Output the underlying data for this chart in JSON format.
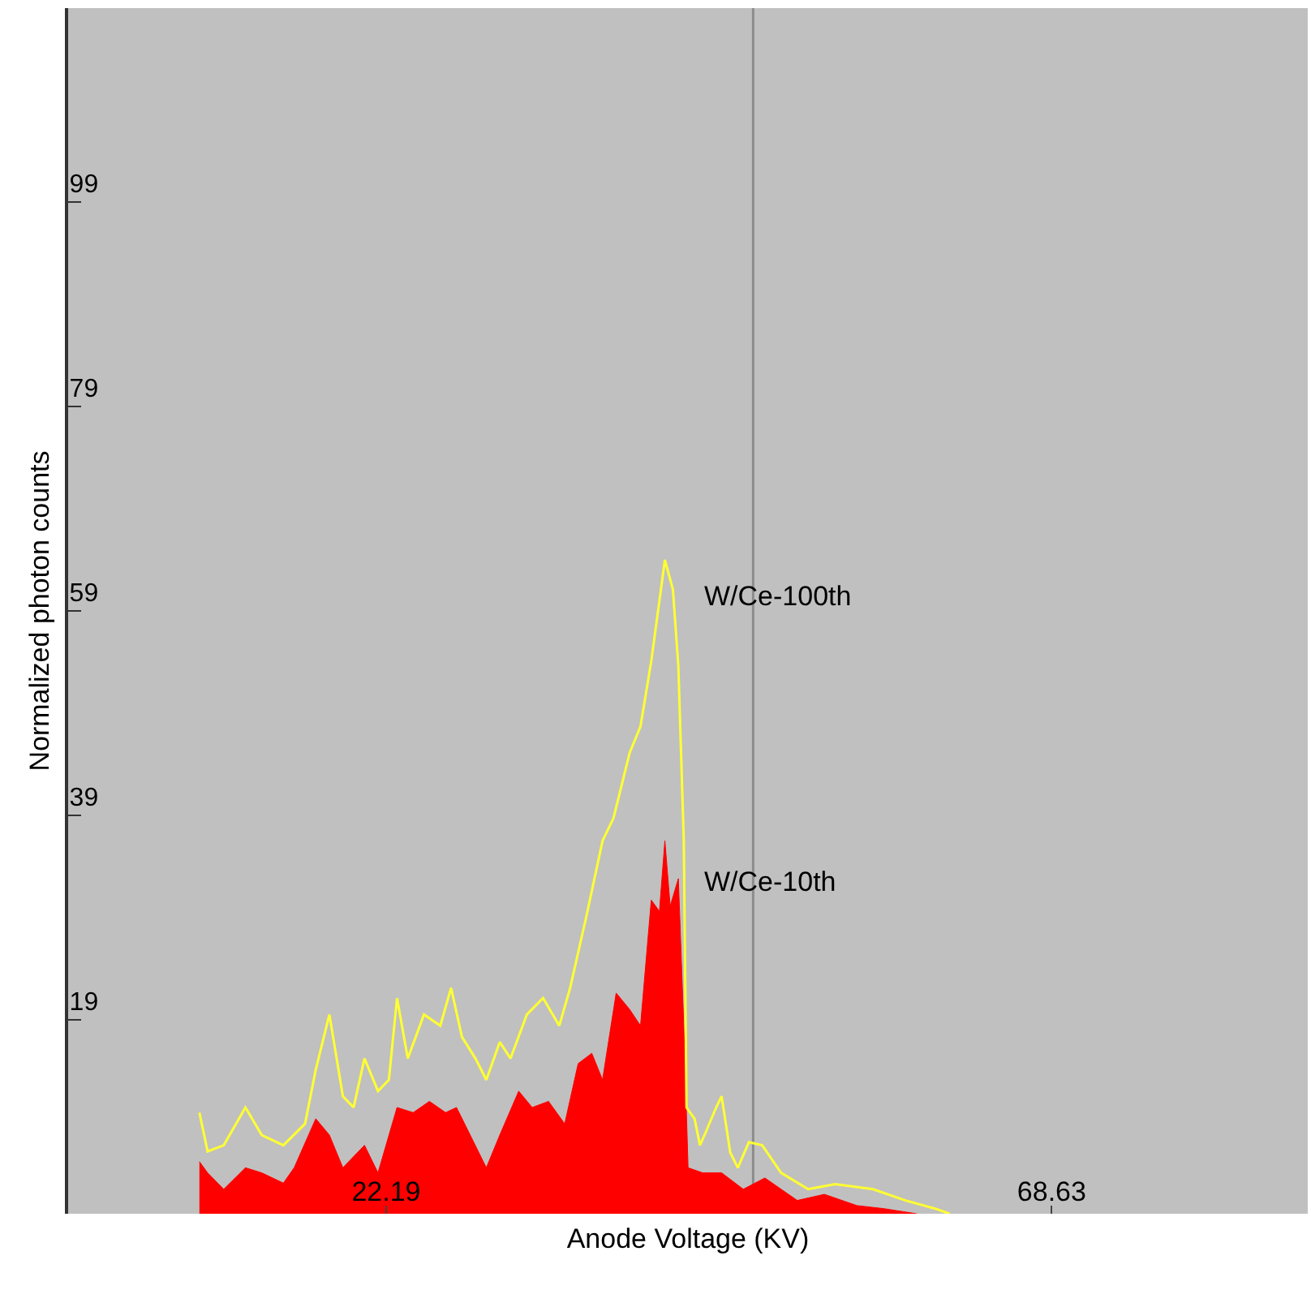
{
  "chart_data": {
    "type": "area",
    "xlabel": "Anode Voltage (KV)",
    "ylabel": "Normalized photon counts",
    "xlim": [
      0,
      86.5
    ],
    "ylim": [
      0,
      118
    ],
    "xticks": [
      22.19,
      68.63
    ],
    "yticks": [
      19,
      39,
      59,
      79,
      99
    ],
    "grid": false,
    "legend": false,
    "ref_lines": [
      {
        "axis": "x",
        "value": 47.8,
        "color": "#8c8c8c"
      }
    ],
    "series": [
      {
        "name": "W/Ce-100th",
        "type": "line",
        "color": "#ffff33",
        "x": [
          9.16,
          9.73,
          10.86,
          12.37,
          13.51,
          15.02,
          16.53,
          17.28,
          18.23,
          19.17,
          19.92,
          20.68,
          21.62,
          22.38,
          22.95,
          23.7,
          24.83,
          25.97,
          26.72,
          27.48,
          28.42,
          29.18,
          30.12,
          30.87,
          32.01,
          33.14,
          34.27,
          35.03,
          36.16,
          37.29,
          38.05,
          39.18,
          39.94,
          40.69,
          41.26,
          41.64,
          42.2,
          42.58,
          42.96,
          43.15,
          43.71,
          44.09,
          44.5,
          45.22,
          45.6,
          46.2,
          46.73,
          47.5,
          48.43,
          49.75,
          51.64,
          53.52,
          56.17,
          58.43,
          60.5,
          61.5
        ],
        "values": [
          9.9,
          6.1,
          6.7,
          10.4,
          7.7,
          6.7,
          8.8,
          14.1,
          19.5,
          11.5,
          10.4,
          15.2,
          12.0,
          13.1,
          21.1,
          15.2,
          19.5,
          18.4,
          22.1,
          17.3,
          15.2,
          13.1,
          16.8,
          15.2,
          19.5,
          21.1,
          18.4,
          22.1,
          29.1,
          36.5,
          38.7,
          45.1,
          47.7,
          54.1,
          60.0,
          64.0,
          61.1,
          53.6,
          36.5,
          10.4,
          9.3,
          6.7,
          8.0,
          10.4,
          11.5,
          6.0,
          4.5,
          7.0,
          6.7,
          4.0,
          2.4,
          2.9,
          2.4,
          1.3,
          0.5,
          0
        ]
      },
      {
        "name": "W/Ce-10th",
        "color": "#ff0000",
        "x": [
          9.16,
          9.73,
          10.86,
          12.37,
          13.51,
          15.02,
          15.77,
          17.28,
          18.23,
          19.17,
          20.68,
          21.62,
          22.95,
          24.08,
          25.21,
          26.34,
          27.1,
          28.23,
          29.18,
          30.12,
          31.44,
          32.38,
          33.52,
          34.65,
          35.59,
          36.54,
          37.29,
          38.24,
          39.18,
          39.94,
          40.69,
          41.26,
          41.64,
          42.01,
          42.58,
          42.96,
          43.26,
          44.28,
          45.6,
          47.11,
          48.62,
          50.88,
          52.77,
          55.04,
          56.92,
          59.2
        ],
        "values": [
          5.1,
          4.0,
          2.4,
          4.5,
          4.0,
          3.0,
          4.5,
          9.3,
          7.7,
          4.5,
          6.7,
          4.0,
          10.4,
          9.9,
          11.0,
          9.9,
          10.4,
          7.2,
          4.5,
          7.7,
          12.0,
          10.4,
          11.0,
          8.8,
          14.7,
          15.7,
          13.1,
          21.6,
          20.0,
          18.4,
          30.7,
          29.6,
          36.5,
          30.1,
          32.8,
          18.4,
          4.5,
          4.0,
          4.0,
          2.4,
          3.5,
          1.3,
          1.9,
          0.8,
          0.5,
          0
        ]
      }
    ]
  }
}
